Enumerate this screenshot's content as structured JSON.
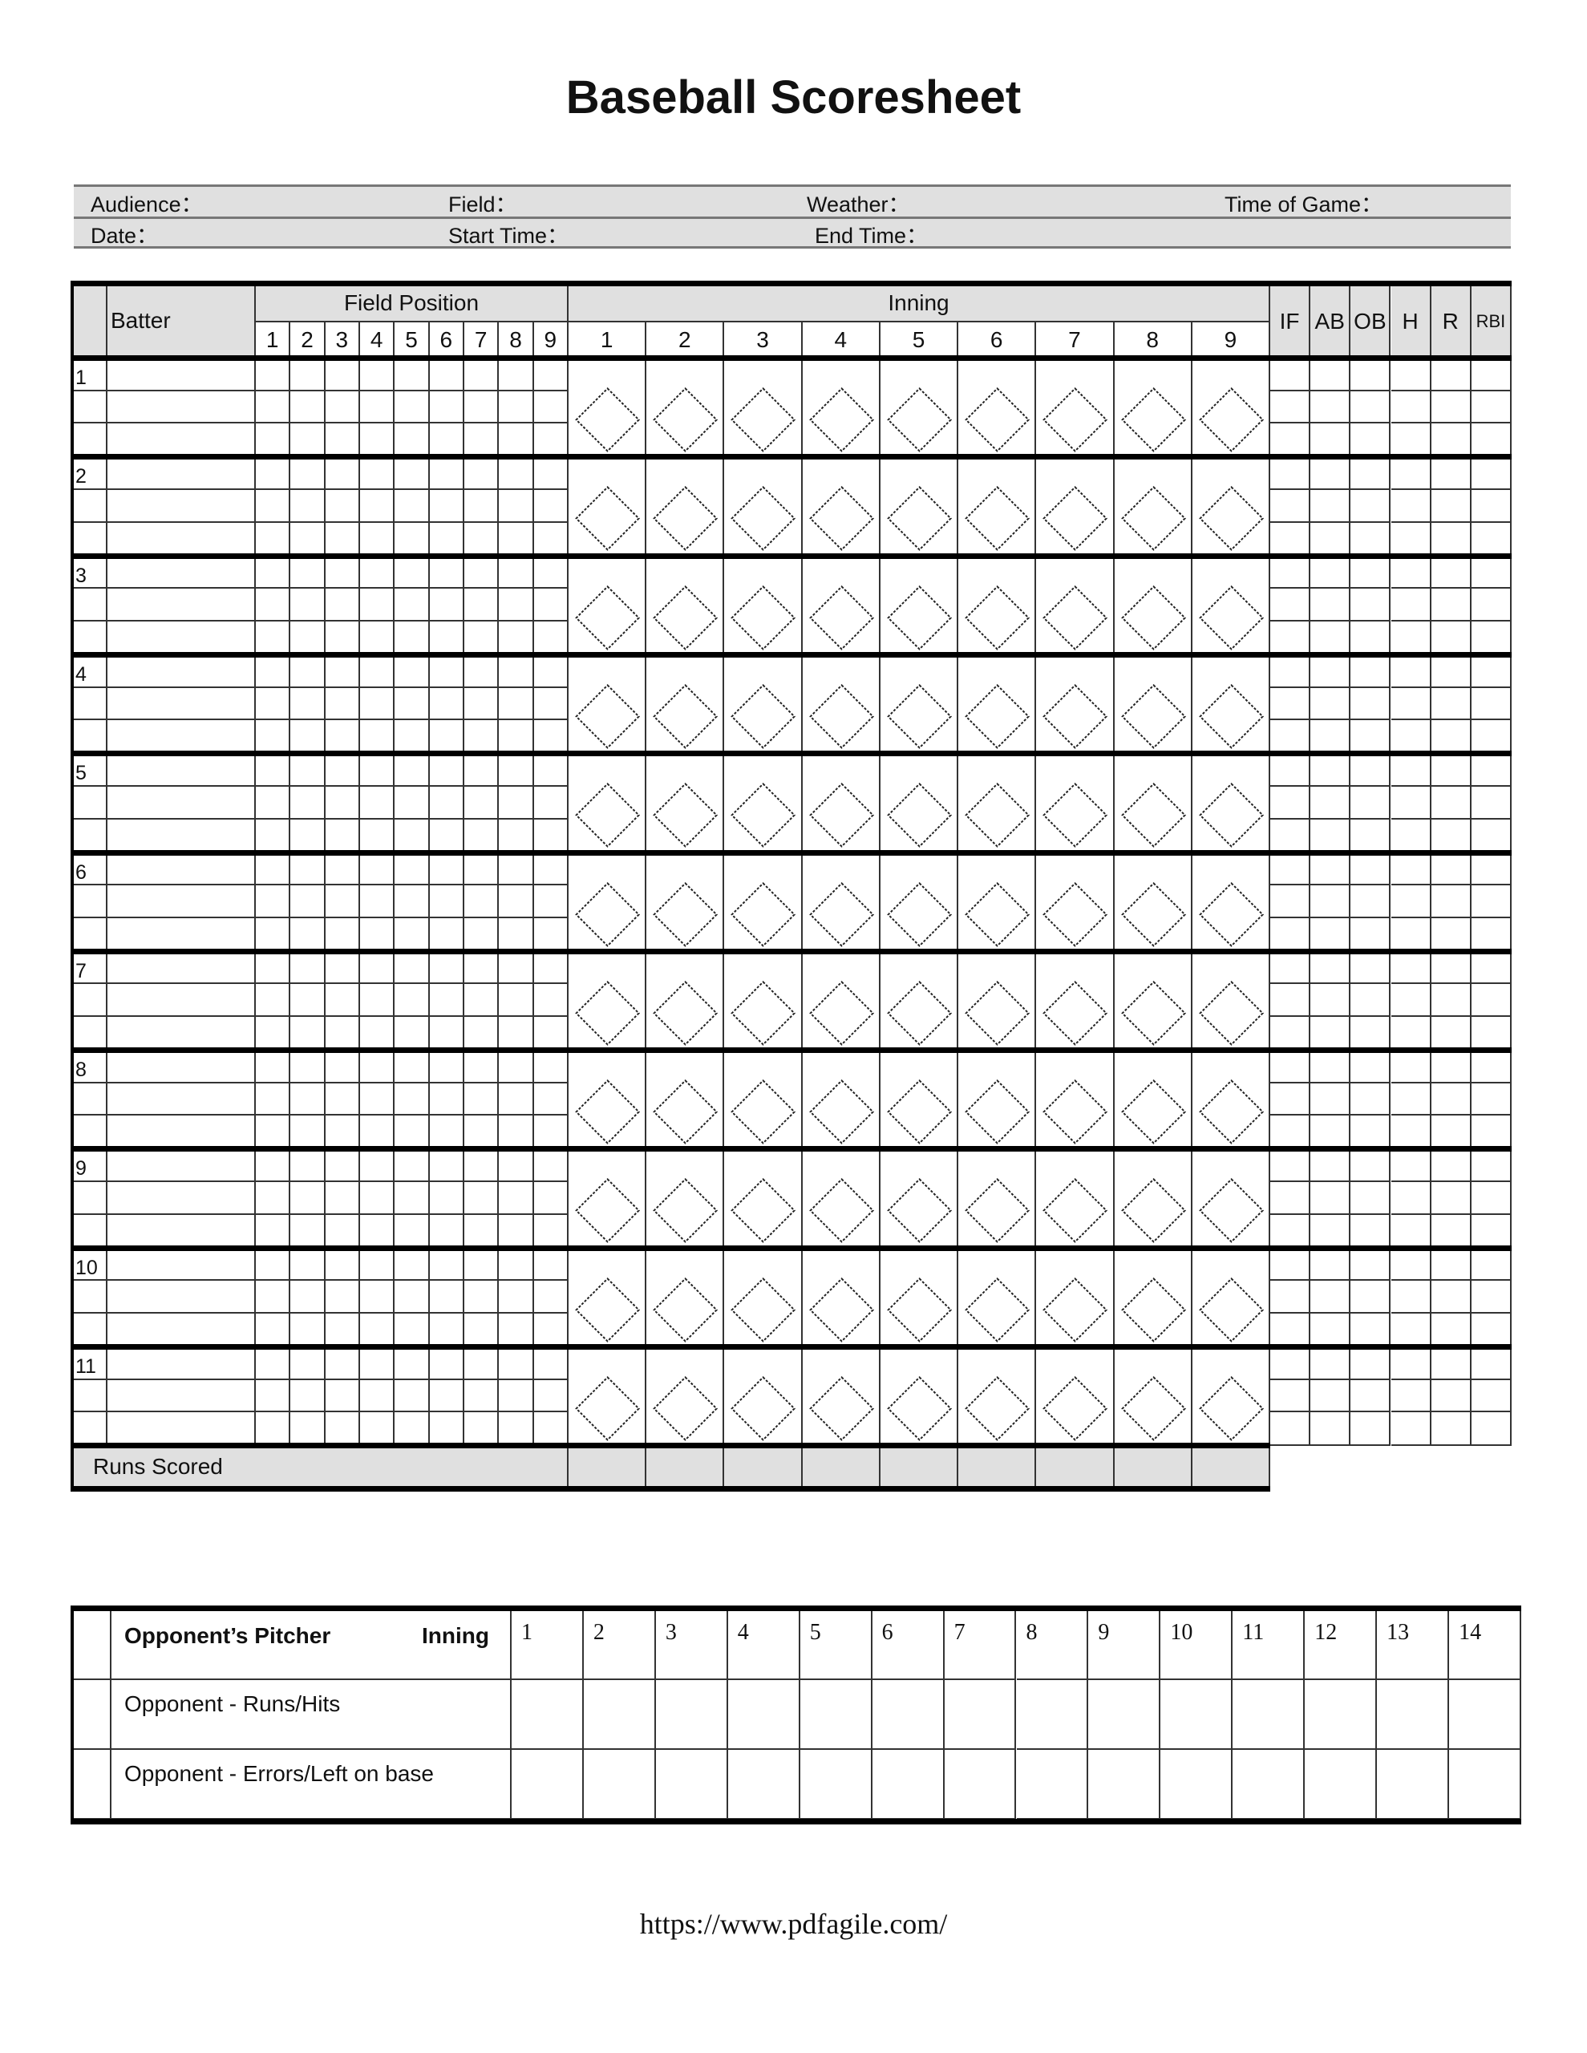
{
  "title": "Baseball Scoresheet",
  "info": {
    "row1": [
      "Audience：",
      "Field：",
      "Weather：",
      "Time of Game："
    ],
    "row2": [
      "Date：",
      "Start Time：",
      "End Time："
    ]
  },
  "main_table": {
    "batter_header": "Batter",
    "field_position_header": "Field Position",
    "field_positions": [
      "1",
      "2",
      "3",
      "4",
      "5",
      "6",
      "7",
      "8",
      "9"
    ],
    "inning_header": "Inning",
    "innings": [
      "1",
      "2",
      "3",
      "4",
      "5",
      "6",
      "7",
      "8",
      "9"
    ],
    "stats": [
      "IF",
      "AB",
      "OB",
      "H",
      "R",
      "RBI"
    ],
    "batter_numbers": [
      "1",
      "2",
      "3",
      "4",
      "5",
      "6",
      "7",
      "8",
      "9",
      "10",
      "11"
    ],
    "runs_scored_label": "Runs Scored",
    "header_bg": "#e0e0e0"
  },
  "opponent_table": {
    "pitcher_label": "Opponent’s Pitcher",
    "inning_label": "Inning",
    "innings": [
      "1",
      "2",
      "3",
      "4",
      "5",
      "6",
      "7",
      "8",
      "9",
      "10",
      "11",
      "12",
      "13",
      "14"
    ],
    "rows": [
      "Opponent - Runs/Hits",
      "Opponent - Errors/Left on base"
    ]
  },
  "footer": "https://www.pdfagile.com/"
}
